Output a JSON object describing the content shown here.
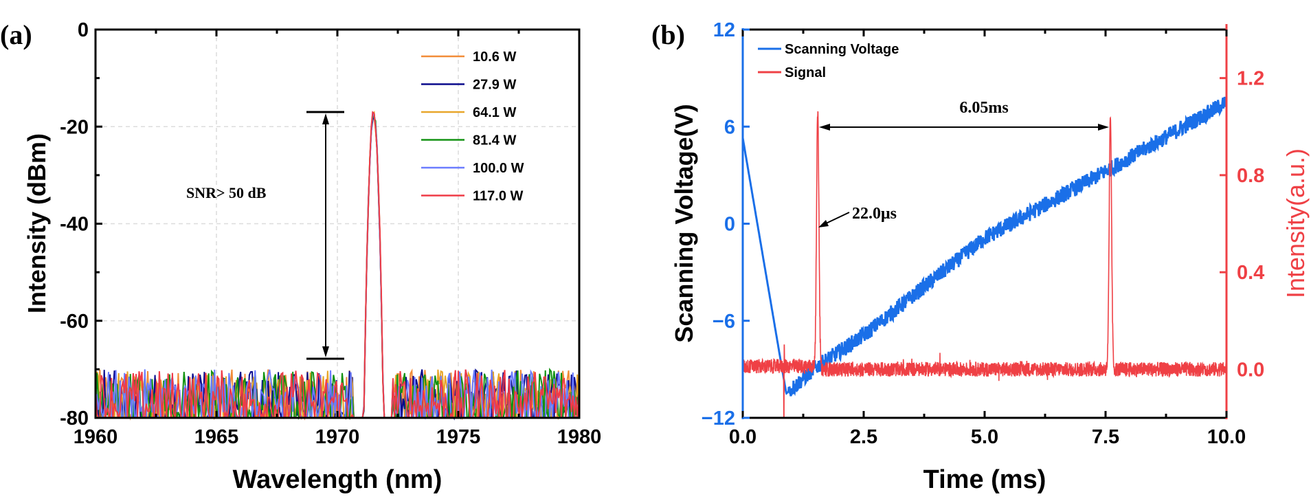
{
  "chart_data": [
    {
      "panel_label": "(a)",
      "type": "line",
      "xlabel": "Wavelength (nm)",
      "ylabel": "Intensity (dBm)",
      "xlim": [
        1960,
        1980
      ],
      "ylim": [
        -80,
        0
      ],
      "xticks": [
        "1960",
        "1965",
        "1970",
        "1975",
        "1980"
      ],
      "yticks": [
        "0",
        "-20",
        "-40",
        "-60",
        "-80"
      ],
      "grid": true,
      "legend_position": "top-right",
      "series": [
        {
          "name": "10.6 W",
          "color": "#f28c38",
          "peak_wavelength": 1971.5,
          "peak_intensity": -17.5,
          "noise_floor": [
            -80,
            -70
          ]
        },
        {
          "name": "27.9 W",
          "color": "#0a0a8c",
          "peak_wavelength": 1971.5,
          "peak_intensity": -17.5,
          "noise_floor": [
            -80,
            -70
          ]
        },
        {
          "name": "64.1 W",
          "color": "#e8a62a",
          "peak_wavelength": 1971.5,
          "peak_intensity": -17.3,
          "noise_floor": [
            -80,
            -70
          ]
        },
        {
          "name": "81.4 W",
          "color": "#129212",
          "peak_wavelength": 1971.5,
          "peak_intensity": -17.2,
          "noise_floor": [
            -80,
            -70
          ]
        },
        {
          "name": "100.0 W",
          "color": "#6b7cff",
          "peak_wavelength": 1971.5,
          "peak_intensity": -17.1,
          "noise_floor": [
            -80,
            -70
          ]
        },
        {
          "name": "117.0 W",
          "color": "#ef3b47",
          "peak_wavelength": 1971.5,
          "peak_intensity": -17.0,
          "noise_floor": [
            -80,
            -70
          ]
        }
      ],
      "annotations": {
        "snr_text": "SNR> 50 dB",
        "upper_level_dbm": -17,
        "lower_level_dbm": -68
      }
    },
    {
      "panel_label": "(b)",
      "type": "line",
      "xlabel": "Time (ms)",
      "ylabel_left": "Scanning Voltage(V)",
      "ylabel_right": "Intensity(a.u.)",
      "xlim": [
        0,
        10
      ],
      "ylim_left": [
        -12,
        12
      ],
      "ylim_right": [
        -0.2,
        1.4
      ],
      "xticks": [
        "0.0",
        "2.5",
        "5.0",
        "7.5",
        "10.0"
      ],
      "yticks_left": [
        "12",
        "6",
        "0",
        "−6",
        "−12"
      ],
      "yticks_right": [
        "1.2",
        "0.8",
        "0.4",
        "0.0"
      ],
      "grid": false,
      "legend_position": "top-left",
      "left_axis_color": "#1a6fe8",
      "right_axis_color": "#ef4045",
      "series": [
        {
          "name": "Scanning Voltage",
          "axis": "left",
          "color": "#1a6fe8",
          "points": [
            [
              0,
              5.3
            ],
            [
              0.9,
              -10.5
            ],
            [
              1.5,
              -8.9
            ],
            [
              2.5,
              -6.9
            ],
            [
              5.0,
              -0.9
            ],
            [
              7.6,
              3.4
            ],
            [
              10.0,
              7.5
            ]
          ]
        },
        {
          "name": "Signal",
          "axis": "right",
          "color": "#ef4045",
          "baseline": 0.0,
          "peaks": [
            {
              "t": 1.55,
              "value": 1.06
            },
            {
              "t": 7.6,
              "value": 1.04
            }
          ],
          "dip": {
            "t": 0.85,
            "value": -0.2
          }
        }
      ],
      "annotations": {
        "period_text": "6.05ms",
        "period_from_ms": 1.55,
        "period_to_ms": 7.6,
        "linewidth_text": "22.0μs"
      }
    }
  ]
}
